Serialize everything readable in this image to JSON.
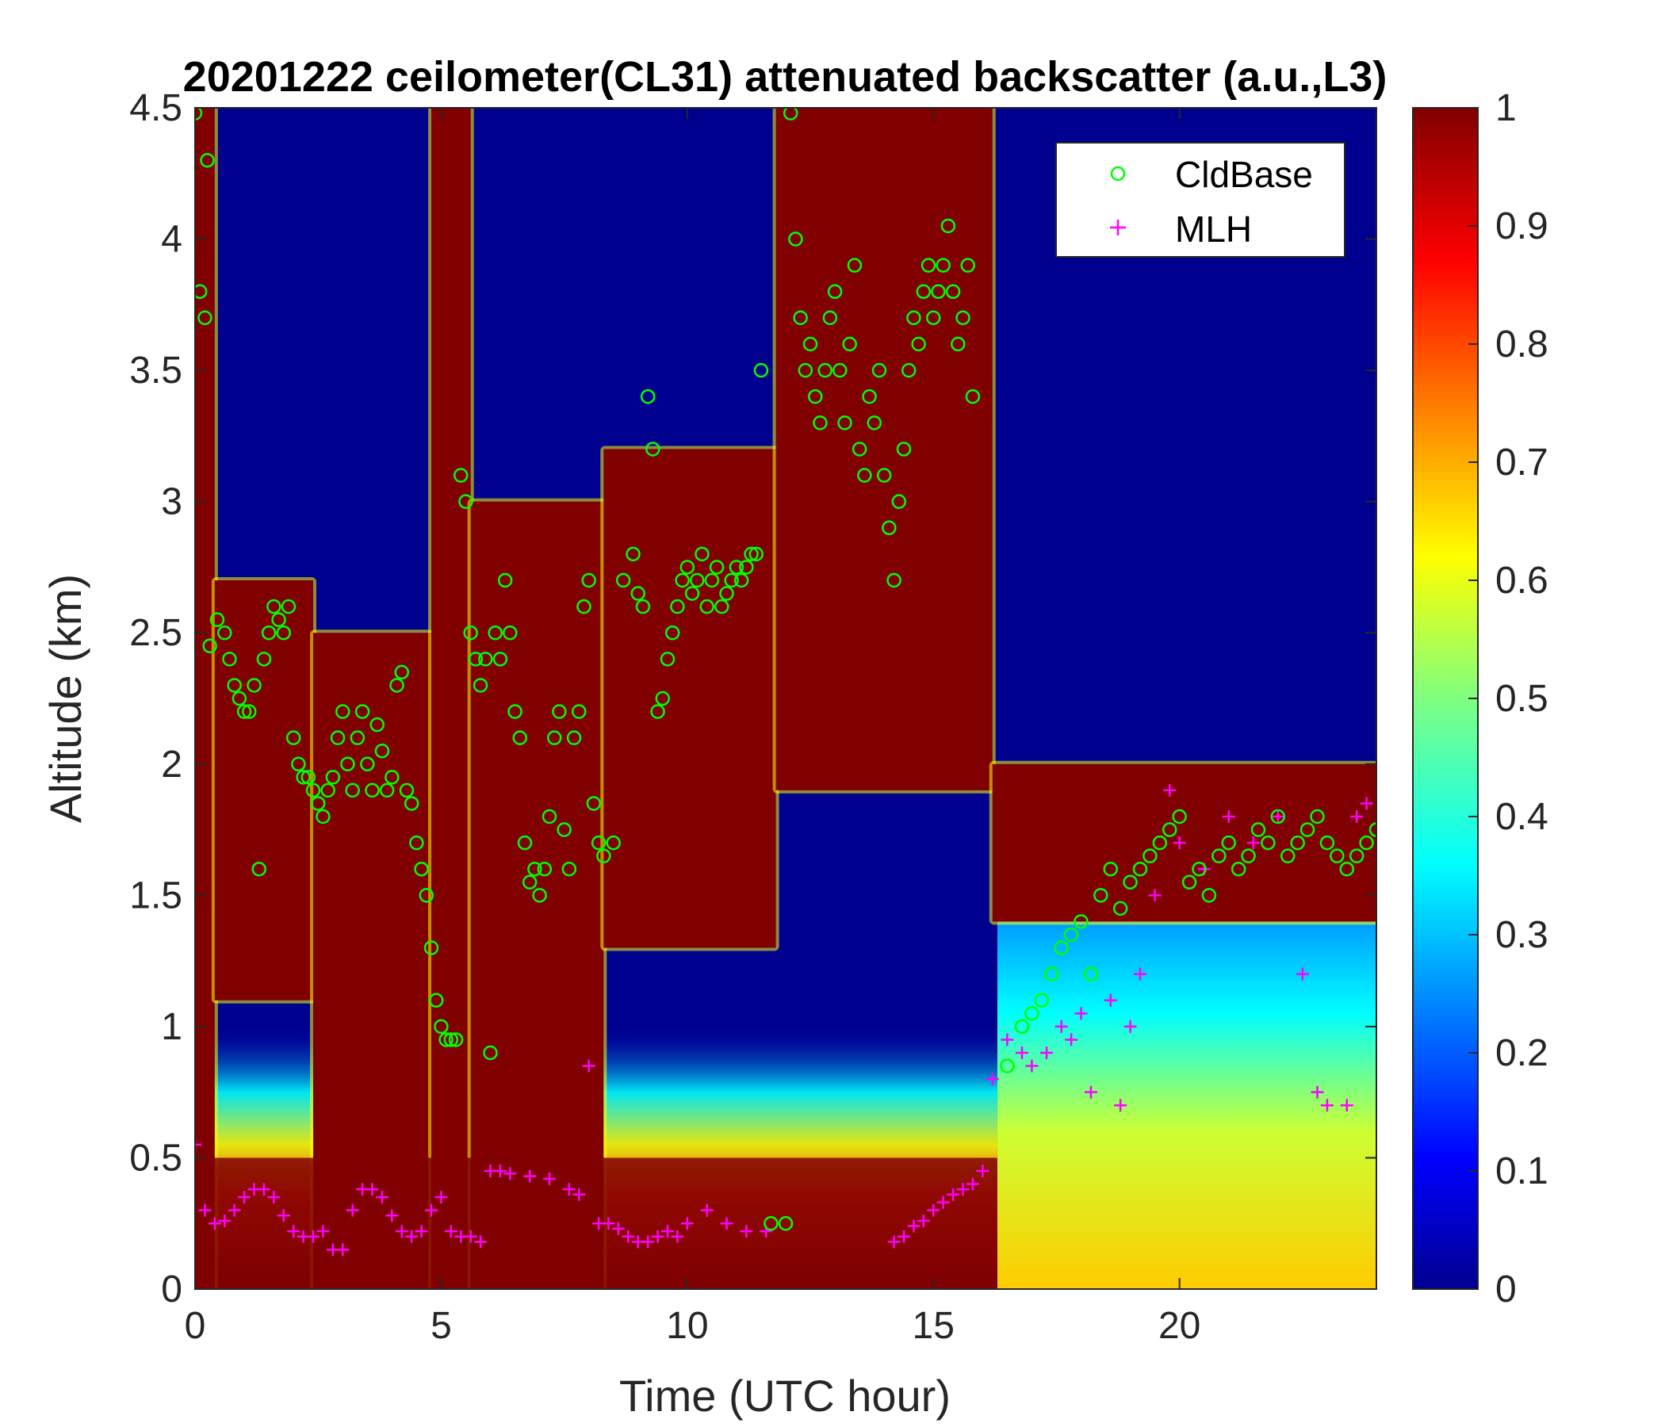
{
  "chart_data": {
    "type": "heatmap",
    "title": "20201222 ceilometer(CL31) attenuated backscatter (a.u.,L3)",
    "xlabel": "Time (UTC hour)",
    "ylabel": "Altitude (km)",
    "xlim": [
      0,
      24
    ],
    "ylim": [
      0,
      4.5
    ],
    "xticks": [
      "0",
      "5",
      "10",
      "15",
      "20"
    ],
    "yticks": [
      "0",
      "0.5",
      "1",
      "1.5",
      "2",
      "2.5",
      "3",
      "3.5",
      "4",
      "4.5"
    ],
    "colorbar": {
      "range": [
        0,
        1
      ],
      "ticks": [
        "0",
        "0.1",
        "0.2",
        "0.3",
        "0.4",
        "0.5",
        "0.6",
        "0.7",
        "0.8",
        "0.9",
        "1"
      ],
      "colormap": "jet"
    },
    "legend": {
      "placement": "top-right",
      "entries": [
        {
          "label": "CldBase",
          "marker": "circle",
          "color": "#00ff00"
        },
        {
          "label": "MLH",
          "marker": "plus",
          "color": "#ff00ff"
        }
      ]
    },
    "backscatter_field": {
      "description_units": "a.u.",
      "saturated_regions": [
        {
          "t": [
            0,
            0.4
          ],
          "z_base": 0,
          "z_top": 4.5
        },
        {
          "t": [
            0.4,
            2.4
          ],
          "z_base": 1.1,
          "z_top": 2.7
        },
        {
          "t": [
            2.4,
            4.8
          ],
          "z_base": 0.0,
          "z_top": 2.5
        },
        {
          "t": [
            4.8,
            5.6
          ],
          "z_base": 0.0,
          "z_top": 4.5
        },
        {
          "t": [
            5.6,
            8.3
          ],
          "z_base": 0.0,
          "z_top": 3.0
        },
        {
          "t": [
            8.3,
            11.8
          ],
          "z_base": 1.3,
          "z_top": 3.2
        },
        {
          "t": [
            11.8,
            16.2
          ],
          "z_base": 1.9,
          "z_top": 4.5
        },
        {
          "t": [
            16.2,
            24
          ],
          "z_base": 1.4,
          "z_top": 2.0
        }
      ],
      "low_level_layer": {
        "z_top": 0.5,
        "value": 1.0
      }
    },
    "series": [
      {
        "name": "CldBase",
        "marker": "circle",
        "points": [
          [
            0.0,
            4.48
          ],
          [
            0.1,
            3.8
          ],
          [
            0.2,
            3.7
          ],
          [
            0.25,
            4.3
          ],
          [
            0.3,
            2.45
          ],
          [
            0.45,
            2.55
          ],
          [
            0.6,
            2.5
          ],
          [
            0.7,
            2.4
          ],
          [
            0.8,
            2.3
          ],
          [
            0.9,
            2.25
          ],
          [
            1.0,
            2.2
          ],
          [
            1.1,
            2.2
          ],
          [
            1.2,
            2.3
          ],
          [
            1.3,
            1.6
          ],
          [
            1.4,
            2.4
          ],
          [
            1.5,
            2.5
          ],
          [
            1.6,
            2.6
          ],
          [
            1.7,
            2.55
          ],
          [
            1.8,
            2.5
          ],
          [
            1.9,
            2.6
          ],
          [
            2.0,
            2.1
          ],
          [
            2.1,
            2.0
          ],
          [
            2.2,
            1.95
          ],
          [
            2.3,
            1.95
          ],
          [
            2.4,
            1.9
          ],
          [
            2.5,
            1.85
          ],
          [
            2.6,
            1.8
          ],
          [
            2.7,
            1.9
          ],
          [
            2.8,
            1.95
          ],
          [
            2.9,
            2.1
          ],
          [
            3.0,
            2.2
          ],
          [
            3.1,
            2.0
          ],
          [
            3.2,
            1.9
          ],
          [
            3.3,
            2.1
          ],
          [
            3.4,
            2.2
          ],
          [
            3.5,
            2.0
          ],
          [
            3.6,
            1.9
          ],
          [
            3.7,
            2.15
          ],
          [
            3.8,
            2.05
          ],
          [
            3.9,
            1.9
          ],
          [
            4.0,
            1.95
          ],
          [
            4.1,
            2.3
          ],
          [
            4.2,
            2.35
          ],
          [
            4.3,
            1.9
          ],
          [
            4.4,
            1.85
          ],
          [
            4.5,
            1.7
          ],
          [
            4.6,
            1.6
          ],
          [
            4.7,
            1.5
          ],
          [
            4.8,
            1.3
          ],
          [
            4.9,
            1.1
          ],
          [
            5.0,
            1.0
          ],
          [
            5.1,
            0.95
          ],
          [
            5.2,
            0.95
          ],
          [
            5.3,
            0.95
          ],
          [
            5.4,
            3.1
          ],
          [
            5.5,
            3.0
          ],
          [
            5.6,
            2.5
          ],
          [
            5.7,
            2.4
          ],
          [
            5.8,
            2.3
          ],
          [
            5.9,
            2.4
          ],
          [
            6.0,
            0.9
          ],
          [
            6.1,
            2.5
          ],
          [
            6.2,
            2.4
          ],
          [
            6.3,
            2.7
          ],
          [
            6.4,
            2.5
          ],
          [
            6.5,
            2.2
          ],
          [
            6.6,
            2.1
          ],
          [
            6.7,
            1.7
          ],
          [
            6.8,
            1.55
          ],
          [
            6.9,
            1.6
          ],
          [
            7.0,
            1.5
          ],
          [
            7.1,
            1.6
          ],
          [
            7.2,
            1.8
          ],
          [
            7.3,
            2.1
          ],
          [
            7.4,
            2.2
          ],
          [
            7.5,
            1.75
          ],
          [
            7.6,
            1.6
          ],
          [
            7.7,
            2.1
          ],
          [
            7.8,
            2.2
          ],
          [
            7.9,
            2.6
          ],
          [
            8.0,
            2.7
          ],
          [
            8.1,
            1.85
          ],
          [
            8.2,
            1.7
          ],
          [
            8.3,
            1.65
          ],
          [
            8.5,
            1.7
          ],
          [
            8.7,
            2.7
          ],
          [
            8.9,
            2.8
          ],
          [
            9.0,
            2.65
          ],
          [
            9.1,
            2.6
          ],
          [
            9.2,
            3.4
          ],
          [
            9.3,
            3.2
          ],
          [
            9.4,
            2.2
          ],
          [
            9.5,
            2.25
          ],
          [
            9.6,
            2.4
          ],
          [
            9.7,
            2.5
          ],
          [
            9.8,
            2.6
          ],
          [
            9.9,
            2.7
          ],
          [
            10.0,
            2.75
          ],
          [
            10.1,
            2.65
          ],
          [
            10.2,
            2.7
          ],
          [
            10.3,
            2.8
          ],
          [
            10.4,
            2.6
          ],
          [
            10.5,
            2.7
          ],
          [
            10.6,
            2.75
          ],
          [
            10.7,
            2.6
          ],
          [
            10.8,
            2.65
          ],
          [
            10.9,
            2.7
          ],
          [
            11.0,
            2.75
          ],
          [
            11.1,
            2.7
          ],
          [
            11.2,
            2.75
          ],
          [
            11.3,
            2.8
          ],
          [
            11.4,
            2.8
          ],
          [
            11.5,
            3.5
          ],
          [
            11.7,
            0.25
          ],
          [
            12.0,
            0.25
          ],
          [
            12.1,
            4.48
          ],
          [
            12.2,
            4.0
          ],
          [
            12.3,
            3.7
          ],
          [
            12.4,
            3.5
          ],
          [
            12.5,
            3.6
          ],
          [
            12.6,
            3.4
          ],
          [
            12.7,
            3.3
          ],
          [
            12.8,
            3.5
          ],
          [
            12.9,
            3.7
          ],
          [
            13.0,
            3.8
          ],
          [
            13.1,
            3.5
          ],
          [
            13.2,
            3.3
          ],
          [
            13.3,
            3.6
          ],
          [
            13.4,
            3.9
          ],
          [
            13.5,
            3.2
          ],
          [
            13.6,
            3.1
          ],
          [
            13.7,
            3.4
          ],
          [
            13.8,
            3.3
          ],
          [
            13.9,
            3.5
          ],
          [
            14.0,
            3.1
          ],
          [
            14.1,
            2.9
          ],
          [
            14.2,
            2.7
          ],
          [
            14.3,
            3.0
          ],
          [
            14.4,
            3.2
          ],
          [
            14.5,
            3.5
          ],
          [
            14.6,
            3.7
          ],
          [
            14.7,
            3.6
          ],
          [
            14.8,
            3.8
          ],
          [
            14.9,
            3.9
          ],
          [
            15.0,
            3.7
          ],
          [
            15.1,
            3.8
          ],
          [
            15.2,
            3.9
          ],
          [
            15.3,
            4.05
          ],
          [
            15.4,
            3.8
          ],
          [
            15.5,
            3.6
          ],
          [
            15.6,
            3.7
          ],
          [
            15.7,
            3.9
          ],
          [
            15.8,
            3.4
          ],
          [
            16.5,
            0.85
          ],
          [
            16.8,
            1.0
          ],
          [
            17.0,
            1.05
          ],
          [
            17.2,
            1.1
          ],
          [
            17.4,
            1.2
          ],
          [
            17.6,
            1.3
          ],
          [
            17.8,
            1.35
          ],
          [
            18.0,
            1.4
          ],
          [
            18.2,
            1.2
          ],
          [
            18.4,
            1.5
          ],
          [
            18.6,
            1.6
          ],
          [
            18.8,
            1.45
          ],
          [
            19.0,
            1.55
          ],
          [
            19.2,
            1.6
          ],
          [
            19.4,
            1.65
          ],
          [
            19.6,
            1.7
          ],
          [
            19.8,
            1.75
          ],
          [
            20.0,
            1.8
          ],
          [
            20.2,
            1.55
          ],
          [
            20.4,
            1.6
          ],
          [
            20.6,
            1.5
          ],
          [
            20.8,
            1.65
          ],
          [
            21.0,
            1.7
          ],
          [
            21.2,
            1.6
          ],
          [
            21.4,
            1.65
          ],
          [
            21.6,
            1.75
          ],
          [
            21.8,
            1.7
          ],
          [
            22.0,
            1.8
          ],
          [
            22.2,
            1.65
          ],
          [
            22.4,
            1.7
          ],
          [
            22.6,
            1.75
          ],
          [
            22.8,
            1.8
          ],
          [
            23.0,
            1.7
          ],
          [
            23.2,
            1.65
          ],
          [
            23.4,
            1.6
          ],
          [
            23.6,
            1.65
          ],
          [
            23.8,
            1.7
          ],
          [
            24.0,
            1.75
          ]
        ]
      },
      {
        "name": "MLH",
        "marker": "plus",
        "points": [
          [
            0.0,
            0.55
          ],
          [
            0.2,
            0.3
          ],
          [
            0.4,
            0.25
          ],
          [
            0.6,
            0.26
          ],
          [
            0.8,
            0.3
          ],
          [
            1.0,
            0.35
          ],
          [
            1.2,
            0.38
          ],
          [
            1.4,
            0.38
          ],
          [
            1.6,
            0.35
          ],
          [
            1.8,
            0.28
          ],
          [
            2.0,
            0.22
          ],
          [
            2.2,
            0.2
          ],
          [
            2.4,
            0.2
          ],
          [
            2.6,
            0.22
          ],
          [
            2.8,
            0.15
          ],
          [
            3.0,
            0.15
          ],
          [
            3.2,
            0.3
          ],
          [
            3.4,
            0.38
          ],
          [
            3.6,
            0.38
          ],
          [
            3.8,
            0.35
          ],
          [
            4.0,
            0.28
          ],
          [
            4.2,
            0.22
          ],
          [
            4.4,
            0.2
          ],
          [
            4.6,
            0.22
          ],
          [
            4.8,
            0.3
          ],
          [
            5.0,
            0.35
          ],
          [
            5.2,
            0.22
          ],
          [
            5.4,
            0.2
          ],
          [
            5.6,
            0.2
          ],
          [
            5.8,
            0.18
          ],
          [
            6.0,
            0.45
          ],
          [
            6.2,
            0.45
          ],
          [
            6.4,
            0.44
          ],
          [
            6.8,
            0.43
          ],
          [
            7.2,
            0.42
          ],
          [
            7.6,
            0.38
          ],
          [
            7.8,
            0.36
          ],
          [
            8.0,
            0.85
          ],
          [
            8.2,
            0.25
          ],
          [
            8.4,
            0.25
          ],
          [
            8.6,
            0.23
          ],
          [
            8.8,
            0.2
          ],
          [
            9.0,
            0.18
          ],
          [
            9.2,
            0.18
          ],
          [
            9.4,
            0.2
          ],
          [
            9.6,
            0.22
          ],
          [
            9.8,
            0.2
          ],
          [
            10.0,
            0.25
          ],
          [
            10.4,
            0.3
          ],
          [
            10.8,
            0.25
          ],
          [
            11.2,
            0.22
          ],
          [
            11.6,
            0.22
          ],
          [
            14.2,
            0.18
          ],
          [
            14.4,
            0.2
          ],
          [
            14.6,
            0.24
          ],
          [
            14.8,
            0.26
          ],
          [
            15.0,
            0.3
          ],
          [
            15.2,
            0.33
          ],
          [
            15.4,
            0.36
          ],
          [
            15.6,
            0.38
          ],
          [
            15.8,
            0.4
          ],
          [
            16.0,
            0.45
          ],
          [
            16.2,
            0.8
          ],
          [
            16.5,
            0.95
          ],
          [
            16.8,
            0.9
          ],
          [
            17.0,
            0.85
          ],
          [
            17.3,
            0.9
          ],
          [
            17.6,
            1.0
          ],
          [
            17.8,
            0.95
          ],
          [
            18.0,
            1.05
          ],
          [
            18.2,
            0.75
          ],
          [
            18.6,
            1.1
          ],
          [
            18.8,
            0.7
          ],
          [
            19.0,
            1.0
          ],
          [
            19.2,
            1.2
          ],
          [
            19.5,
            1.5
          ],
          [
            19.8,
            1.9
          ],
          [
            20.0,
            1.7
          ],
          [
            20.5,
            1.6
          ],
          [
            21.0,
            1.8
          ],
          [
            21.5,
            1.7
          ],
          [
            22.0,
            1.8
          ],
          [
            22.5,
            1.2
          ],
          [
            22.8,
            0.75
          ],
          [
            23.0,
            0.7
          ],
          [
            23.4,
            0.7
          ],
          [
            23.6,
            1.8
          ],
          [
            23.8,
            1.85
          ]
        ]
      }
    ]
  }
}
